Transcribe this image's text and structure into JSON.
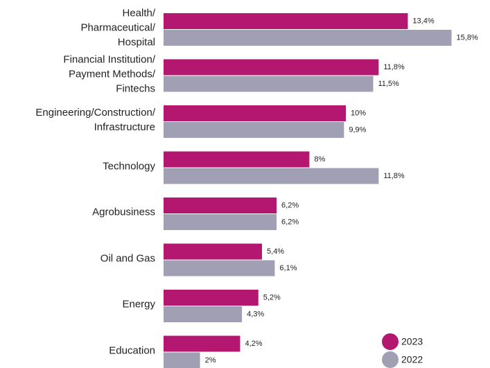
{
  "chart_data": {
    "type": "bar",
    "orientation": "horizontal",
    "categories": [
      "Health/\nPharmaceutical/\nHospital",
      "Financial Institution/\nPayment Methods/\nFintechs",
      "Engineering/Construction/\nInfrastructure",
      "Technology",
      "Agrobusiness",
      "Oil and Gas",
      "Energy",
      "Education"
    ],
    "series": [
      {
        "name": "2023",
        "color": "#b3176f",
        "values": [
          13.4,
          11.8,
          10,
          8,
          6.2,
          5.4,
          5.2,
          4.2
        ],
        "value_labels": [
          "13,4%",
          "11,8%",
          "10%",
          "8%",
          "6,2%",
          "5,4%",
          "5,2%",
          "4,2%"
        ]
      },
      {
        "name": "2022",
        "color": "#a19fb4",
        "values": [
          15.8,
          11.5,
          9.9,
          11.8,
          6.2,
          6.1,
          4.3,
          2
        ],
        "value_labels": [
          "15,8%",
          "11,5%",
          "9,9%",
          "11,8%",
          "6,2%",
          "6,1%",
          "4,3%",
          "2%"
        ]
      }
    ],
    "legend": "bottom-right"
  }
}
